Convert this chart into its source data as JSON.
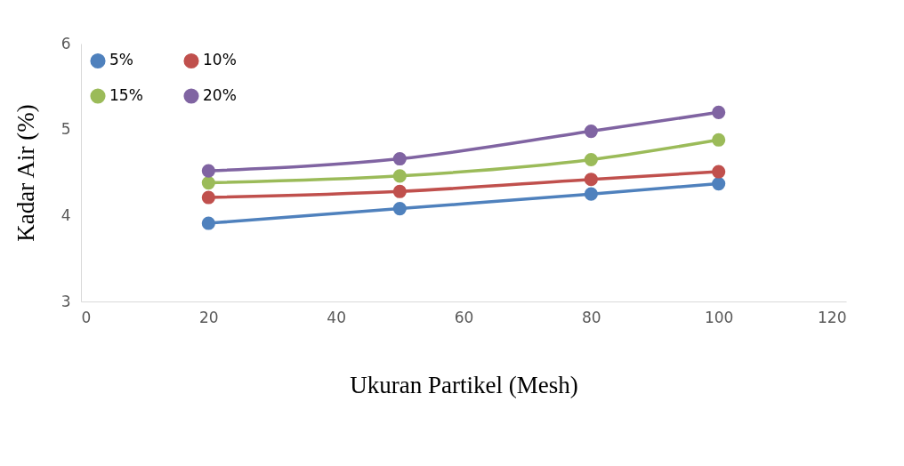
{
  "chart_data": {
    "type": "line",
    "xlabel": "Ukuran Partikel (Mesh)",
    "ylabel": "Kadar Air (%)",
    "x": [
      20,
      50,
      80,
      100
    ],
    "series": [
      {
        "name": "5%",
        "color": "#4f81bd",
        "values": [
          3.91,
          4.08,
          4.25,
          4.37
        ]
      },
      {
        "name": "10%",
        "color": "#c0504d",
        "values": [
          4.21,
          4.28,
          4.42,
          4.51
        ]
      },
      {
        "name": "15%",
        "color": "#9bbb59",
        "values": [
          4.38,
          4.46,
          4.65,
          4.88
        ]
      },
      {
        "name": "20%",
        "color": "#8064a2",
        "values": [
          4.52,
          4.66,
          4.98,
          5.2
        ]
      }
    ],
    "xlim": [
      0,
      120
    ],
    "xticks": [
      0,
      20,
      40,
      60,
      80,
      100,
      120
    ],
    "ylim": [
      3,
      6
    ],
    "yticks": [
      3,
      4,
      5,
      6
    ],
    "grid": false,
    "legend": "top left",
    "marker": "circle",
    "line_style": "solid"
  }
}
